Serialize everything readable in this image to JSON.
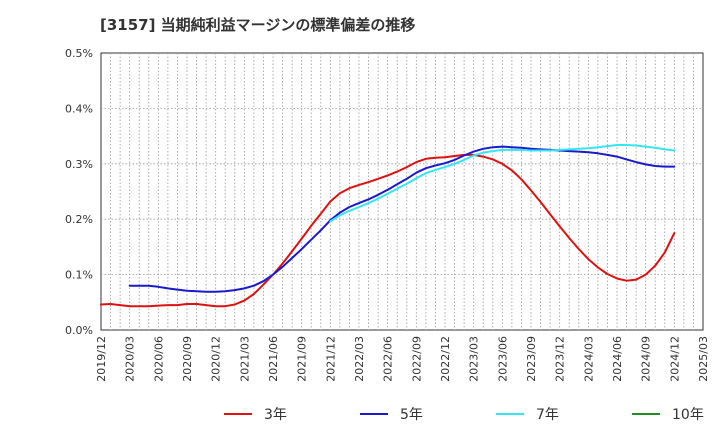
{
  "chart_data": {
    "type": "line",
    "title": "[3157]  当期純利益マージンの標準偏差の推移",
    "x_ticks": [
      "2019/12",
      "2020/03",
      "2020/06",
      "2020/09",
      "2020/12",
      "2021/03",
      "2021/06",
      "2021/09",
      "2021/12",
      "2022/03",
      "2022/06",
      "2022/09",
      "2022/12",
      "2023/03",
      "2023/06",
      "2023/09",
      "2023/12",
      "2024/03",
      "2024/06",
      "2024/09",
      "2024/12",
      "2025/03"
    ],
    "y_ticks": [
      "0.0%",
      "0.1%",
      "0.2%",
      "0.3%",
      "0.4%",
      "0.5%"
    ],
    "ylim": [
      0,
      0.5
    ],
    "grid": true,
    "legend_position": "bottom",
    "series": [
      {
        "name": "3年",
        "color": "#dd1111",
        "points": [
          [
            "2019/12",
            0.046
          ],
          [
            "2020/01",
            0.047
          ],
          [
            "2020/02",
            0.045
          ],
          [
            "2020/03",
            0.043
          ],
          [
            "2020/04",
            0.043
          ],
          [
            "2020/05",
            0.043
          ],
          [
            "2020/06",
            0.044
          ],
          [
            "2020/07",
            0.045
          ],
          [
            "2020/08",
            0.045
          ],
          [
            "2020/09",
            0.047
          ],
          [
            "2020/10",
            0.047
          ],
          [
            "2020/11",
            0.045
          ],
          [
            "2020/12",
            0.043
          ],
          [
            "2021/01",
            0.043
          ],
          [
            "2021/02",
            0.046
          ],
          [
            "2021/03",
            0.053
          ],
          [
            "2021/04",
            0.065
          ],
          [
            "2021/05",
            0.082
          ],
          [
            "2021/06",
            0.1
          ],
          [
            "2021/07",
            0.12
          ],
          [
            "2021/08",
            0.142
          ],
          [
            "2021/09",
            0.165
          ],
          [
            "2021/10",
            0.188
          ],
          [
            "2021/11",
            0.21
          ],
          [
            "2021/12",
            0.232
          ],
          [
            "2022/01",
            0.247
          ],
          [
            "2022/02",
            0.256
          ],
          [
            "2022/03",
            0.262
          ],
          [
            "2022/04",
            0.267
          ],
          [
            "2022/05",
            0.273
          ],
          [
            "2022/06",
            0.279
          ],
          [
            "2022/07",
            0.286
          ],
          [
            "2022/08",
            0.294
          ],
          [
            "2022/09",
            0.303
          ],
          [
            "2022/10",
            0.309
          ],
          [
            "2022/11",
            0.311
          ],
          [
            "2022/12",
            0.312
          ],
          [
            "2023/01",
            0.314
          ],
          [
            "2023/02",
            0.316
          ],
          [
            "2023/03",
            0.316
          ],
          [
            "2023/04",
            0.313
          ],
          [
            "2023/05",
            0.308
          ],
          [
            "2023/06",
            0.3
          ],
          [
            "2023/07",
            0.288
          ],
          [
            "2023/08",
            0.272
          ],
          [
            "2023/09",
            0.252
          ],
          [
            "2023/10",
            0.231
          ],
          [
            "2023/11",
            0.209
          ],
          [
            "2023/12",
            0.187
          ],
          [
            "2024/01",
            0.166
          ],
          [
            "2024/02",
            0.146
          ],
          [
            "2024/03",
            0.128
          ],
          [
            "2024/04",
            0.113
          ],
          [
            "2024/05",
            0.101
          ],
          [
            "2024/06",
            0.093
          ],
          [
            "2024/07",
            0.089
          ],
          [
            "2024/08",
            0.091
          ],
          [
            "2024/09",
            0.1
          ],
          [
            "2024/10",
            0.116
          ],
          [
            "2024/11",
            0.14
          ],
          [
            "2024/12",
            0.175
          ]
        ]
      },
      {
        "name": "5年",
        "color": "#1a1acc",
        "points": [
          [
            "2020/03",
            0.08
          ],
          [
            "2020/04",
            0.08
          ],
          [
            "2020/05",
            0.08
          ],
          [
            "2020/06",
            0.078
          ],
          [
            "2020/07",
            0.075
          ],
          [
            "2020/08",
            0.073
          ],
          [
            "2020/09",
            0.071
          ],
          [
            "2020/10",
            0.07
          ],
          [
            "2020/11",
            0.069
          ],
          [
            "2020/12",
            0.069
          ],
          [
            "2021/01",
            0.07
          ],
          [
            "2021/02",
            0.072
          ],
          [
            "2021/03",
            0.075
          ],
          [
            "2021/04",
            0.08
          ],
          [
            "2021/05",
            0.088
          ],
          [
            "2021/06",
            0.1
          ],
          [
            "2021/07",
            0.114
          ],
          [
            "2021/08",
            0.13
          ],
          [
            "2021/09",
            0.146
          ],
          [
            "2021/10",
            0.163
          ],
          [
            "2021/11",
            0.18
          ],
          [
            "2021/12",
            0.198
          ],
          [
            "2022/01",
            0.212
          ],
          [
            "2022/02",
            0.222
          ],
          [
            "2022/03",
            0.229
          ],
          [
            "2022/04",
            0.236
          ],
          [
            "2022/05",
            0.244
          ],
          [
            "2022/06",
            0.253
          ],
          [
            "2022/07",
            0.263
          ],
          [
            "2022/08",
            0.273
          ],
          [
            "2022/09",
            0.284
          ],
          [
            "2022/10",
            0.292
          ],
          [
            "2022/11",
            0.297
          ],
          [
            "2022/12",
            0.301
          ],
          [
            "2023/01",
            0.307
          ],
          [
            "2023/02",
            0.315
          ],
          [
            "2023/03",
            0.322
          ],
          [
            "2023/04",
            0.327
          ],
          [
            "2023/05",
            0.33
          ],
          [
            "2023/06",
            0.331
          ],
          [
            "2023/07",
            0.33
          ],
          [
            "2023/08",
            0.329
          ],
          [
            "2023/09",
            0.327
          ],
          [
            "2023/10",
            0.326
          ],
          [
            "2023/11",
            0.325
          ],
          [
            "2023/12",
            0.324
          ],
          [
            "2024/01",
            0.323
          ],
          [
            "2024/02",
            0.322
          ],
          [
            "2024/03",
            0.321
          ],
          [
            "2024/04",
            0.319
          ],
          [
            "2024/05",
            0.316
          ],
          [
            "2024/06",
            0.313
          ],
          [
            "2024/07",
            0.308
          ],
          [
            "2024/08",
            0.303
          ],
          [
            "2024/09",
            0.299
          ],
          [
            "2024/10",
            0.296
          ],
          [
            "2024/11",
            0.295
          ],
          [
            "2024/12",
            0.295
          ]
        ]
      },
      {
        "name": "7年",
        "color": "#33e6f2",
        "points": [
          [
            "2021/12",
            0.196
          ],
          [
            "2022/01",
            0.207
          ],
          [
            "2022/02",
            0.215
          ],
          [
            "2022/03",
            0.222
          ],
          [
            "2022/04",
            0.229
          ],
          [
            "2022/05",
            0.237
          ],
          [
            "2022/06",
            0.246
          ],
          [
            "2022/07",
            0.255
          ],
          [
            "2022/08",
            0.264
          ],
          [
            "2022/09",
            0.274
          ],
          [
            "2022/10",
            0.283
          ],
          [
            "2022/11",
            0.289
          ],
          [
            "2022/12",
            0.294
          ],
          [
            "2023/01",
            0.3
          ],
          [
            "2023/02",
            0.307
          ],
          [
            "2023/03",
            0.315
          ],
          [
            "2023/04",
            0.32
          ],
          [
            "2023/05",
            0.323
          ],
          [
            "2023/06",
            0.325
          ],
          [
            "2023/07",
            0.325
          ],
          [
            "2023/08",
            0.325
          ],
          [
            "2023/09",
            0.324
          ],
          [
            "2023/10",
            0.324
          ],
          [
            "2023/11",
            0.324
          ],
          [
            "2023/12",
            0.325
          ],
          [
            "2024/01",
            0.326
          ],
          [
            "2024/02",
            0.327
          ],
          [
            "2024/03",
            0.328
          ],
          [
            "2024/04",
            0.33
          ],
          [
            "2024/05",
            0.332
          ],
          [
            "2024/06",
            0.334
          ],
          [
            "2024/07",
            0.334
          ],
          [
            "2024/08",
            0.333
          ],
          [
            "2024/09",
            0.331
          ],
          [
            "2024/10",
            0.329
          ],
          [
            "2024/11",
            0.326
          ],
          [
            "2024/12",
            0.324
          ]
        ]
      },
      {
        "name": "10年",
        "color": "#228b22",
        "points": []
      }
    ]
  }
}
